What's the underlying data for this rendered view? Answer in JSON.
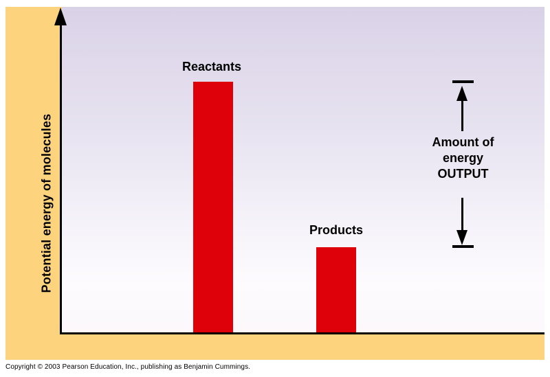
{
  "chart_data": {
    "type": "bar",
    "title": "",
    "xlabel": "",
    "ylabel": "Potential energy of molecules",
    "categories": [
      "Reactants",
      "Products"
    ],
    "values": [
      100,
      34
    ],
    "ylim": [
      0,
      100
    ],
    "grid": false,
    "numeric_ticks_shown": false,
    "bar_color": "#de0109",
    "annotation": {
      "text": "Amount of energy OUTPUT",
      "lines": [
        "Amount of",
        "energy",
        "OUTPUT"
      ],
      "spans_from_level": "Reactants bar top",
      "spans_to_level": "Products bar top",
      "style": "double-headed arrow with end caps"
    }
  },
  "colors": {
    "frame_background": "#fed37e",
    "plot_gradient_top": "#ddd6ea",
    "plot_gradient_bottom": "#fdfbfd",
    "axis": "#000000",
    "bar": "#de0109",
    "text": "#000000"
  },
  "footer": {
    "copyright": "Copyright © 2003 Pearson Education, Inc., publishing as Benjamin Cummings."
  }
}
